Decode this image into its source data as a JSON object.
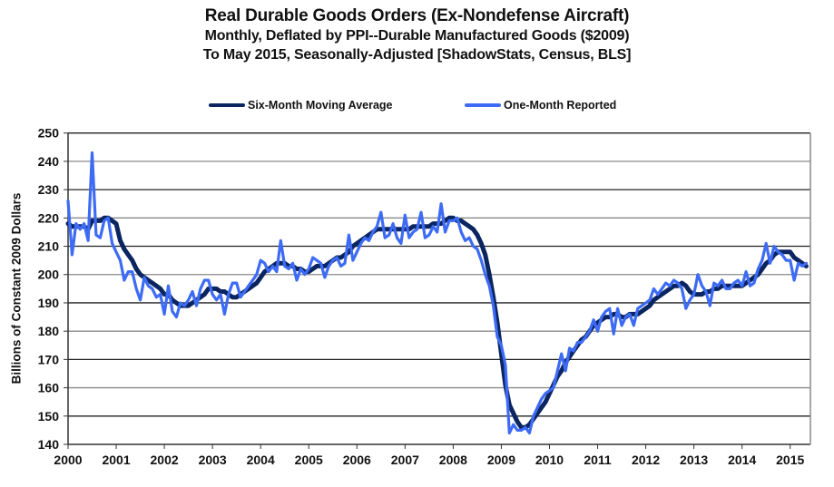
{
  "chart_data": {
    "type": "line",
    "title": "Real Durable Goods Orders (Ex-Nondefense Aircraft)",
    "subtitle_1": "Monthly, Deflated by PPI--Durable Manufactured Goods ($2009)",
    "subtitle_2": "To May 2015, Seasonally-Adjusted [ShadowStats, Census, BLS]",
    "xlabel": "",
    "ylabel": "Billions  of Constant 2009 Dollars",
    "ylim": [
      140,
      250
    ],
    "yticks": [
      "140",
      "150",
      "160",
      "170",
      "180",
      "190",
      "200",
      "210",
      "220",
      "230",
      "240",
      "250"
    ],
    "xlim": [
      2000,
      2015.42
    ],
    "xticks": [
      "2000",
      "2001",
      "2002",
      "2003",
      "2004",
      "2005",
      "2006",
      "2007",
      "2008",
      "2009",
      "2010",
      "2011",
      "2012",
      "2013",
      "2014",
      "2015"
    ],
    "grid": "horizontal",
    "legend_position": "top-center",
    "x_start": "2000-01",
    "x_frequency": "monthly",
    "series": [
      {
        "name": "Six-Month Moving Average",
        "color": "#0b2560",
        "values": [
          218,
          217,
          217,
          217,
          217,
          216,
          219,
          219,
          219,
          220,
          220,
          219,
          218,
          212,
          209,
          207,
          205,
          202,
          200,
          199,
          198,
          197,
          196,
          195,
          193,
          193,
          191,
          190,
          189,
          189,
          189,
          190,
          191,
          192,
          193,
          195,
          195,
          195,
          194,
          194,
          193,
          192,
          192,
          193,
          194,
          195,
          196,
          197,
          199,
          201,
          202,
          203,
          204,
          204,
          204,
          203,
          203,
          202,
          202,
          201,
          201,
          202,
          203,
          203,
          203,
          204,
          205,
          206,
          206,
          207,
          208,
          210,
          211,
          212,
          213,
          214,
          215,
          216,
          216,
          216,
          216,
          216,
          216,
          216,
          216,
          216,
          217,
          217,
          217,
          217,
          217,
          218,
          218,
          218,
          219,
          220,
          220,
          219,
          219,
          218,
          217,
          216,
          214,
          211,
          207,
          200,
          192,
          183,
          172,
          161,
          154,
          151,
          148,
          146,
          146,
          147,
          149,
          151,
          153,
          155,
          158,
          161,
          164,
          166,
          169,
          171,
          173,
          175,
          177,
          178,
          180,
          182,
          183,
          184,
          185,
          185,
          186,
          186,
          185,
          185,
          186,
          186,
          186,
          187,
          188,
          189,
          191,
          192,
          193,
          194,
          195,
          196,
          196,
          197,
          196,
          194,
          193,
          193,
          193,
          194,
          194,
          195,
          195,
          196,
          196,
          196,
          196,
          196,
          196,
          197,
          198,
          199,
          200,
          202,
          204,
          205,
          207,
          208,
          208,
          208,
          208,
          206,
          205,
          204,
          203
        ]
      },
      {
        "name": "One-Month Reported",
        "color": "#3d6bf5",
        "values": [
          226,
          207,
          218,
          216,
          218,
          212,
          243,
          214,
          213,
          219,
          220,
          211,
          208,
          205,
          198,
          201,
          201,
          195,
          191,
          199,
          196,
          195,
          192,
          193,
          186,
          196,
          187,
          185,
          190,
          189,
          191,
          194,
          189,
          195,
          198,
          198,
          193,
          191,
          193,
          186,
          193,
          197,
          197,
          192,
          194,
          196,
          198,
          200,
          205,
          204,
          201,
          203,
          201,
          212,
          203,
          202,
          204,
          198,
          202,
          200,
          202,
          206,
          205,
          204,
          199,
          203,
          205,
          206,
          203,
          204,
          214,
          205,
          208,
          211,
          213,
          212,
          215,
          217,
          222,
          213,
          214,
          218,
          213,
          211,
          221,
          213,
          215,
          216,
          222,
          213,
          214,
          217,
          215,
          225,
          215,
          219,
          219,
          220,
          215,
          212,
          213,
          210,
          209,
          205,
          200,
          196,
          189,
          178,
          175,
          168,
          144,
          147,
          145,
          145,
          146,
          144,
          150,
          153,
          156,
          158,
          159,
          160,
          166,
          172,
          166,
          174,
          173,
          176,
          176,
          178,
          180,
          184,
          180,
          185,
          187,
          188,
          179,
          188,
          182,
          185,
          186,
          182,
          188,
          189,
          190,
          191,
          195,
          193,
          195,
          197,
          196,
          198,
          197,
          195,
          188,
          191,
          193,
          200,
          196,
          194,
          189,
          197,
          196,
          198,
          195,
          195,
          197,
          198,
          196,
          201,
          196,
          197,
          202,
          205,
          211,
          204,
          210,
          208,
          207,
          205,
          205,
          198,
          204,
          203,
          204
        ]
      }
    ]
  }
}
